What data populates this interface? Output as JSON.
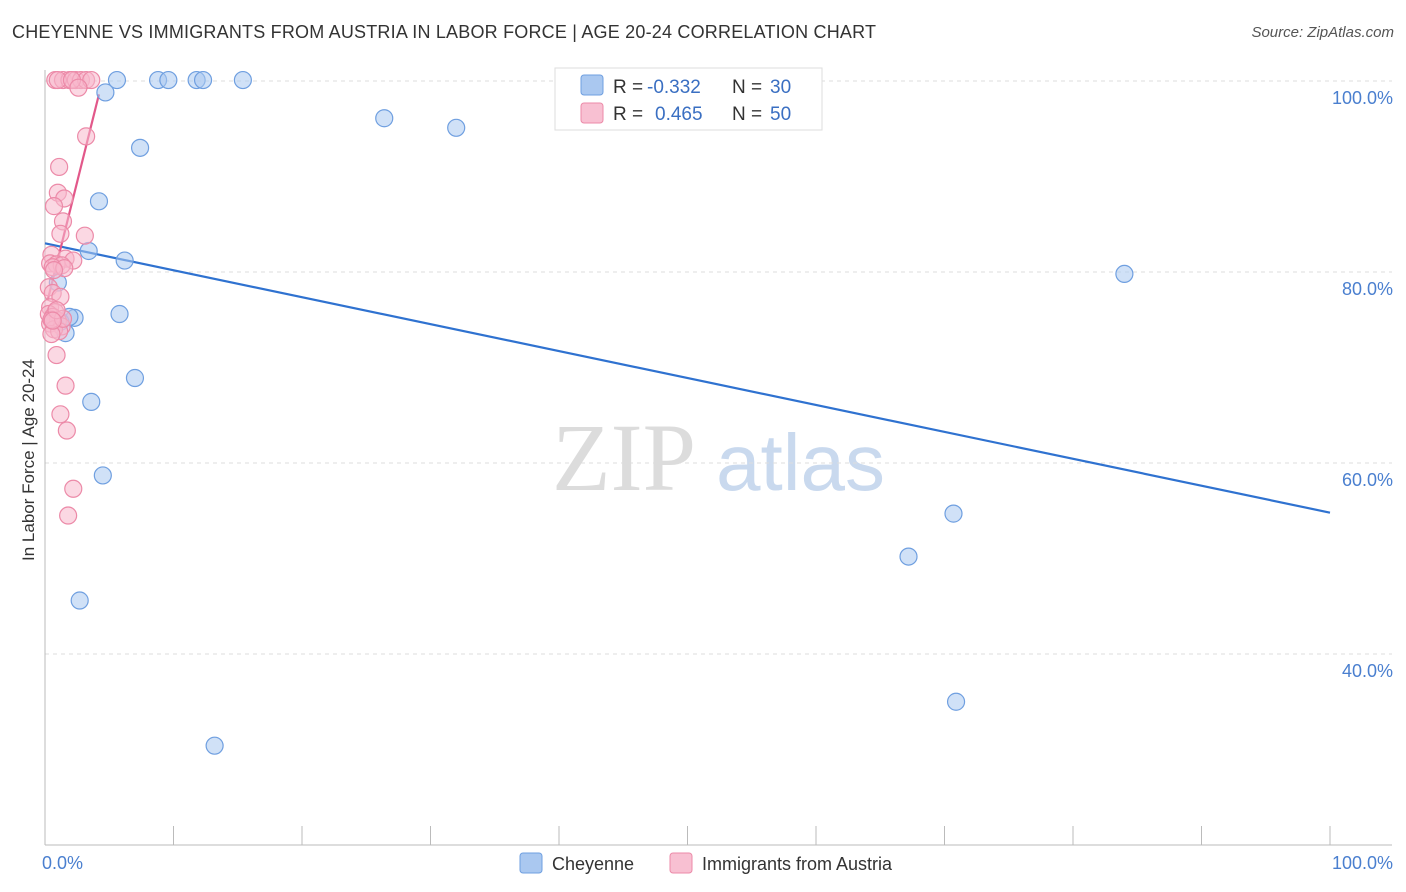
{
  "title": "CHEYENNE VS IMMIGRANTS FROM AUSTRIA IN LABOR FORCE | AGE 20-24 CORRELATION CHART",
  "source": "Source: ZipAtlas.com",
  "watermark": {
    "zip": "ZIP",
    "atlas": "atlas"
  },
  "colors": {
    "blue_fill": "#aac8f0",
    "blue_stroke": "#6f9fe0",
    "blue_line": "#2f72d0",
    "pink_fill": "#f8b8cc",
    "pink_stroke": "#ec8aa8",
    "pink_line": "#e2588a",
    "grid": "#dddddd"
  },
  "legend": {
    "rows": [
      {
        "r_label": "R =",
        "r_value": "-0.332",
        "n_label": "N =",
        "n_value": "30"
      },
      {
        "r_label": "R =",
        "r_value": "0.465",
        "n_label": "N =",
        "n_value": "50"
      }
    ]
  },
  "chart_data": {
    "type": "scatter",
    "xlabel": "",
    "ylabel": "In Labor Force | Age 20-24",
    "x_ticks": [
      "0.0%",
      "100.0%"
    ],
    "y_ticks": [
      "40.0%",
      "60.0%",
      "80.0%",
      "100.0%"
    ],
    "xlim": [
      0,
      100
    ],
    "ylim": [
      22,
      102
    ],
    "y_tick_values": [
      40,
      60,
      80,
      100
    ],
    "series": [
      {
        "name": "Cheyenne",
        "color": "blue",
        "trend": [
          [
            0,
            83.0
          ],
          [
            100,
            54.8
          ]
        ],
        "points": [
          [
            5.6,
            100.1
          ],
          [
            8.8,
            100.1
          ],
          [
            9.6,
            100.1
          ],
          [
            11.8,
            100.1
          ],
          [
            12.3,
            100.1
          ],
          [
            15.4,
            100.1
          ],
          [
            4.7,
            98.8
          ],
          [
            26.4,
            96.1
          ],
          [
            32.0,
            95.1
          ],
          [
            7.4,
            93.0
          ],
          [
            4.2,
            87.4
          ],
          [
            3.4,
            82.2
          ],
          [
            6.2,
            81.2
          ],
          [
            1.0,
            78.9
          ],
          [
            5.8,
            75.6
          ],
          [
            2.3,
            75.2
          ],
          [
            0.8,
            74.9
          ],
          [
            1.6,
            73.6
          ],
          [
            7.0,
            68.9
          ],
          [
            3.6,
            66.4
          ],
          [
            4.5,
            58.7
          ],
          [
            2.7,
            45.6
          ],
          [
            13.2,
            30.4
          ],
          [
            84.0,
            79.8
          ],
          [
            70.7,
            54.7
          ],
          [
            67.2,
            50.2
          ],
          [
            70.9,
            35.0
          ],
          [
            1.2,
            74.8
          ],
          [
            0.6,
            75.0
          ],
          [
            1.9,
            75.3
          ]
        ]
      },
      {
        "name": "Immigrants from Austria",
        "color": "pink",
        "trend": [
          [
            0.2,
            77.0
          ],
          [
            4.2,
            98.6
          ]
        ],
        "points": [
          [
            0.8,
            100.1
          ],
          [
            1.4,
            100.1
          ],
          [
            1.9,
            100.1
          ],
          [
            2.4,
            100.1
          ],
          [
            2.8,
            100.1
          ],
          [
            3.2,
            100.1
          ],
          [
            3.6,
            100.1
          ],
          [
            1.0,
            100.1
          ],
          [
            2.1,
            100.1
          ],
          [
            2.6,
            99.3
          ],
          [
            3.2,
            94.2
          ],
          [
            1.1,
            91.0
          ],
          [
            1.0,
            88.3
          ],
          [
            1.5,
            87.7
          ],
          [
            0.7,
            86.9
          ],
          [
            1.4,
            85.3
          ],
          [
            3.1,
            83.8
          ],
          [
            1.2,
            84.0
          ],
          [
            0.5,
            81.8
          ],
          [
            1.6,
            81.4
          ],
          [
            2.2,
            81.2
          ],
          [
            0.4,
            80.9
          ],
          [
            0.9,
            80.8
          ],
          [
            1.3,
            80.7
          ],
          [
            0.6,
            80.5
          ],
          [
            1.5,
            80.4
          ],
          [
            0.7,
            80.2
          ],
          [
            0.3,
            78.4
          ],
          [
            0.6,
            77.8
          ],
          [
            1.2,
            77.4
          ],
          [
            0.4,
            76.3
          ],
          [
            0.8,
            75.8
          ],
          [
            0.3,
            75.6
          ],
          [
            0.6,
            75.3
          ],
          [
            1.0,
            74.9
          ],
          [
            0.4,
            74.6
          ],
          [
            1.3,
            74.3
          ],
          [
            0.7,
            74.0
          ],
          [
            1.1,
            73.8
          ],
          [
            0.5,
            73.5
          ],
          [
            0.9,
            71.3
          ],
          [
            1.6,
            68.1
          ],
          [
            1.2,
            65.1
          ],
          [
            1.7,
            63.4
          ],
          [
            2.2,
            57.3
          ],
          [
            1.8,
            54.5
          ],
          [
            0.5,
            75.0
          ],
          [
            1.4,
            75.1
          ],
          [
            0.9,
            76.0
          ],
          [
            0.6,
            74.9
          ]
        ]
      }
    ]
  },
  "bottom_legend": [
    {
      "label": "Cheyenne",
      "color": "blue"
    },
    {
      "label": "Immigrants from Austria",
      "color": "pink"
    }
  ]
}
